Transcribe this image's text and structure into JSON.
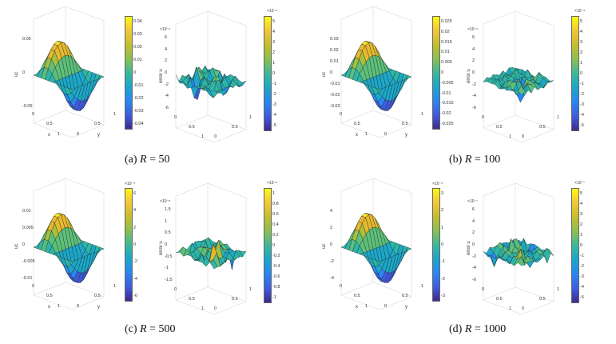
{
  "panels": [
    {
      "id": "a",
      "caption_prefix": "(a)",
      "caption_var": "R",
      "caption_rest": "= 50",
      "uc": {
        "zlabel": "uc",
        "zticks": [
          "0.05",
          "0",
          "-0.05"
        ],
        "xlabel": "x",
        "ylabel": "y",
        "xticks": [
          "0",
          "0.5",
          "1"
        ],
        "yticks": [
          "0",
          "0.5",
          "1"
        ],
        "cbar_ticks": [
          "0.04",
          "0.03",
          "0.02",
          "0.01",
          "0",
          "-0.01",
          "-0.02",
          "-0.03",
          "-0.04"
        ],
        "cbar_exp": ""
      },
      "err": {
        "zlabel": "error u",
        "exp": "×10⁻⁹",
        "zticks": [
          "6",
          "4",
          "2",
          "0",
          "-2",
          "-4",
          "-6"
        ],
        "xticks": [
          "0",
          "0.5",
          "1"
        ],
        "yticks": [
          "0",
          "0.5",
          "1"
        ],
        "cbar_ticks": [
          "5",
          "4",
          "3",
          "2",
          "1",
          "0",
          "-1",
          "-2",
          "-3",
          "-4",
          "-5"
        ],
        "cbar_exp": "×10⁻⁹"
      }
    },
    {
      "id": "b",
      "caption_prefix": "(b)",
      "caption_var": "R",
      "caption_rest": "= 100",
      "uc": {
        "zlabel": "uc",
        "zticks": [
          "0.03",
          "0.02",
          "0.01",
          "0",
          "-0.01",
          "-0.02",
          "-0.03"
        ],
        "xlabel": "x",
        "ylabel": "y",
        "xticks": [
          "0",
          "0.5",
          "1"
        ],
        "yticks": [
          "0",
          "0.5",
          "1"
        ],
        "cbar_ticks": [
          "0.025",
          "0.02",
          "0.015",
          "0.01",
          "0.005",
          "0",
          "-0.005",
          "-0.01",
          "-0.015",
          "-0.02",
          "-0.025"
        ],
        "cbar_exp": ""
      },
      "err": {
        "zlabel": "error u",
        "exp": "×10⁻⁹",
        "zticks": [
          "6",
          "4",
          "2",
          "0",
          "-2",
          "-4",
          "-6"
        ],
        "xticks": [
          "0",
          "0.5",
          "1"
        ],
        "yticks": [
          "0",
          "0.5",
          "1"
        ],
        "cbar_ticks": [
          "5",
          "4",
          "3",
          "2",
          "1",
          "0",
          "-1",
          "-2",
          "-3",
          "-4",
          "-5"
        ],
        "cbar_exp": "×10⁻⁹"
      }
    },
    {
      "id": "c",
      "caption_prefix": "(c)",
      "caption_var": "R",
      "caption_rest": "= 500",
      "uc": {
        "zlabel": "uc",
        "zticks": [
          "0.01",
          "0.005",
          "0",
          "-0.005",
          "-0.01"
        ],
        "xlabel": "x",
        "ylabel": "y",
        "xticks": [
          "0",
          "0.5",
          "1"
        ],
        "yticks": [
          "0",
          "0.5",
          "1"
        ],
        "cbar_ticks": [
          "6",
          "4",
          "2",
          "0",
          "-2",
          "-4",
          "-6"
        ],
        "cbar_exp": "×10⁻³"
      },
      "err": {
        "zlabel": "error u",
        "exp": "×10⁻⁸",
        "zticks": [
          "1.5",
          "1",
          "0.5",
          "0",
          "-0.5",
          "-1",
          "-1.5"
        ],
        "xticks": [
          "0",
          "0.5",
          "1"
        ],
        "yticks": [
          "0",
          "0.5",
          "1"
        ],
        "cbar_ticks": [
          "1",
          "0.8",
          "0.6",
          "0.4",
          "0.2",
          "0",
          "-0.2",
          "-0.4",
          "-0.6",
          "-0.8",
          "-1"
        ],
        "cbar_exp": "×10⁻⁸"
      }
    },
    {
      "id": "d",
      "caption_prefix": "(d)",
      "caption_var": "R",
      "caption_rest": "= 1000",
      "uc": {
        "zlabel": "uc",
        "zticks": [
          "4",
          "2",
          "0",
          "-2",
          "-4"
        ],
        "xlabel": "x",
        "ylabel": "y",
        "xticks": [
          "0",
          "0.5",
          "1"
        ],
        "yticks": [
          "0",
          "0.5",
          "1"
        ],
        "cbar_ticks": [
          "3",
          "2",
          "1",
          "0",
          "-1",
          "-2",
          "-3"
        ],
        "cbar_exp": "×10⁻³"
      },
      "err": {
        "zlabel": "error u",
        "exp": "×10⁻⁷",
        "zticks": [
          "6",
          "4",
          "2",
          "0",
          "-2",
          "-4",
          "-6"
        ],
        "xticks": [
          "0",
          "0.5",
          "1"
        ],
        "yticks": [
          "0",
          "0.5",
          "1"
        ],
        "cbar_ticks": [
          "5",
          "4",
          "3",
          "2",
          "1",
          "0",
          "-1",
          "-2",
          "-3",
          "-4",
          "-5"
        ],
        "cbar_exp": "×10⁻⁷"
      }
    }
  ]
}
